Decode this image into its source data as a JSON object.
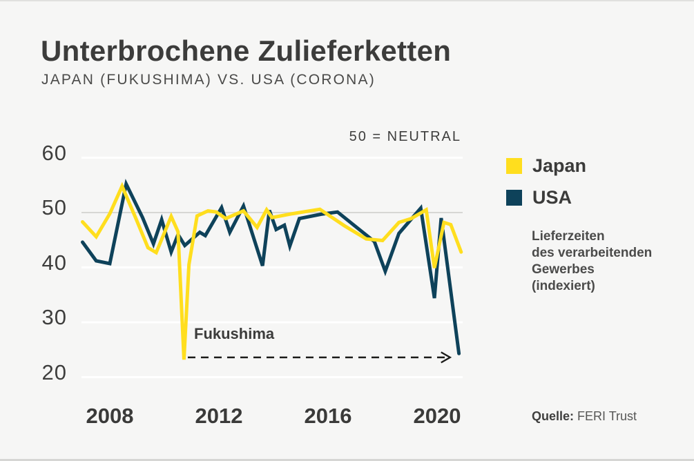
{
  "header": {
    "title": "Unterbrochene Zulieferketten",
    "subtitle": "JAPAN (FUKUSHIMA) VS. USA (CORONA)"
  },
  "chart_data": {
    "type": "line",
    "title": "Unterbrochene Zulieferketten",
    "subtitle": "Japan (Fukushima) vs. USA (Corona)",
    "note": "50 = NEUTRAL",
    "xlabel": "",
    "ylabel": "",
    "y_ticks": [
      60,
      50,
      40,
      30,
      20
    ],
    "x_ticks": [
      2008,
      2012,
      2016,
      2020
    ],
    "x_range": [
      2007.0,
      2020.9
    ],
    "ylim": [
      17,
      63
    ],
    "neutral_value": 50,
    "grid": "horizontal",
    "legend_position": "right",
    "series": [
      {
        "name": "USA",
        "color": "#0e425a",
        "points": [
          [
            2007.0,
            44.6
          ],
          [
            2007.5,
            41.2
          ],
          [
            2008.0,
            40.7
          ],
          [
            2008.6,
            55.2
          ],
          [
            2009.2,
            49.1
          ],
          [
            2009.6,
            44.3
          ],
          [
            2009.9,
            48.7
          ],
          [
            2010.25,
            42.8
          ],
          [
            2010.5,
            46.0
          ],
          [
            2010.75,
            44.0
          ],
          [
            2011.3,
            46.4
          ],
          [
            2011.5,
            45.8
          ],
          [
            2012.1,
            50.9
          ],
          [
            2012.4,
            46.4
          ],
          [
            2012.9,
            51.2
          ],
          [
            2013.6,
            40.3
          ],
          [
            2013.85,
            50.4
          ],
          [
            2014.1,
            46.9
          ],
          [
            2014.4,
            47.7
          ],
          [
            2014.6,
            43.9
          ],
          [
            2014.95,
            48.9
          ],
          [
            2015.75,
            49.7
          ],
          [
            2016.35,
            50.1
          ],
          [
            2017.4,
            45.9
          ],
          [
            2017.7,
            44.7
          ],
          [
            2018.1,
            39.3
          ],
          [
            2018.6,
            46.2
          ],
          [
            2019.4,
            50.8
          ],
          [
            2019.9,
            34.4
          ],
          [
            2020.15,
            49.0
          ],
          [
            2020.8,
            24.3
          ]
        ]
      },
      {
        "name": "Japan",
        "color": "#ffde1e",
        "points": [
          [
            2007.0,
            48.3
          ],
          [
            2007.5,
            45.6
          ],
          [
            2008.0,
            49.8
          ],
          [
            2008.45,
            54.8
          ],
          [
            2008.95,
            49.0
          ],
          [
            2009.4,
            43.6
          ],
          [
            2009.7,
            42.7
          ],
          [
            2010.25,
            49.3
          ],
          [
            2010.5,
            46.5
          ],
          [
            2010.72,
            23.2
          ],
          [
            2010.9,
            40.5
          ],
          [
            2011.2,
            49.4
          ],
          [
            2011.6,
            50.3
          ],
          [
            2011.9,
            50.1
          ],
          [
            2012.25,
            48.9
          ],
          [
            2012.9,
            50.3
          ],
          [
            2013.4,
            47.3
          ],
          [
            2013.75,
            50.5
          ],
          [
            2013.95,
            49.1
          ],
          [
            2014.7,
            49.8
          ],
          [
            2015.7,
            50.6
          ],
          [
            2016.6,
            47.6
          ],
          [
            2017.4,
            45.2
          ],
          [
            2018.0,
            44.9
          ],
          [
            2018.6,
            48.2
          ],
          [
            2019.05,
            48.9
          ],
          [
            2019.6,
            50.5
          ],
          [
            2019.9,
            39.9
          ],
          [
            2020.25,
            48.2
          ],
          [
            2020.5,
            47.8
          ],
          [
            2020.88,
            42.8
          ]
        ]
      }
    ],
    "annotation": {
      "label": "Fukushima",
      "arrow_value": 23.6,
      "arrow_from_year": 2010.86,
      "arrow_to_year": 2020.45
    }
  },
  "legend": {
    "items": [
      {
        "label": "Japan",
        "color": "#ffde1e"
      },
      {
        "label": "USA",
        "color": "#0e425a"
      }
    ]
  },
  "side_note": "Lieferzeiten\ndes verarbeitenden\nGewerbes\n(indexiert)",
  "source": {
    "label": "Quelle:",
    "value": "FERI Trust"
  }
}
